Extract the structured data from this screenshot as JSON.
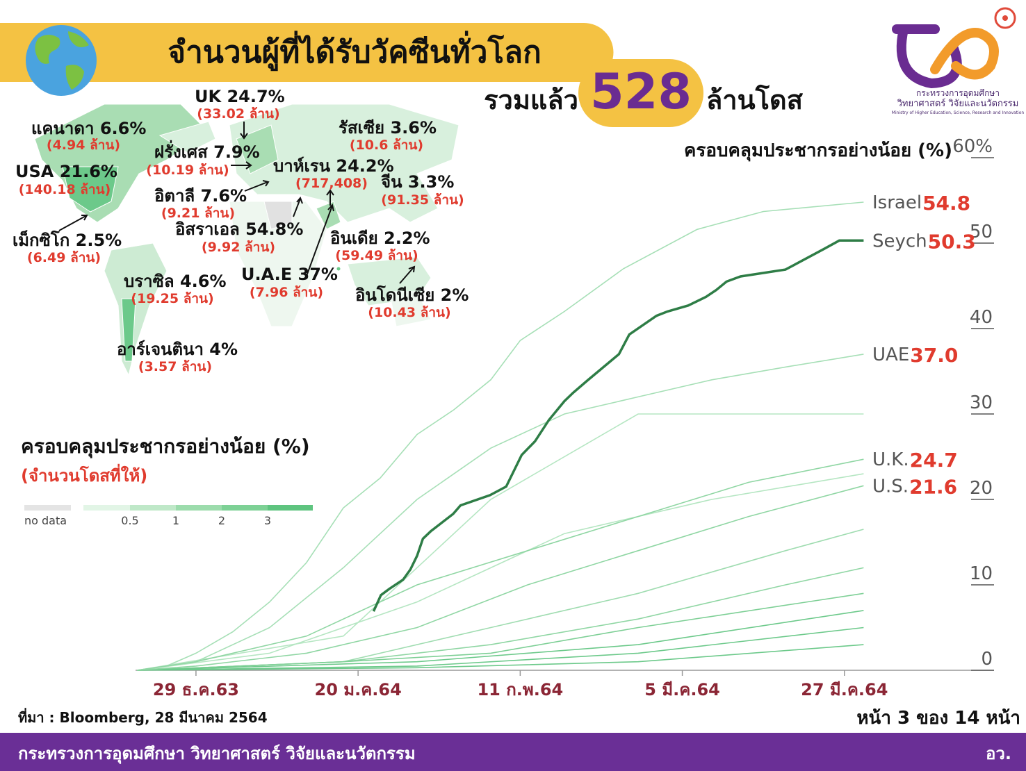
{
  "header": {
    "title": "จำนวนผู้ที่ได้รับวัคซีนทั่วโลก",
    "total_prefix": "รวมแล้ว",
    "total": "528",
    "total_suffix": "ล้านโดส"
  },
  "logo": {
    "line1": "กระทรวงการอุดมศึกษา",
    "line2": "วิทยาศาสตร์ วิจัยและนวัตกรรม",
    "line3": "Ministry of Higher Education, Science, Research and Innovation"
  },
  "map": {
    "labels": [
      {
        "label": "UK 24.7%",
        "doses": "(33.02 ล้าน)"
      },
      {
        "label": "แคนาดา 6.6%",
        "doses": "(4.94 ล้าน)"
      },
      {
        "label": "ฝรั่งเศส 7.9%",
        "doses": "(10.19 ล้าน)"
      },
      {
        "label": "รัสเซีย 3.6%",
        "doses": "(10.6 ล้าน)"
      },
      {
        "label": "USA 21.6%",
        "doses": "(140.18 ล้าน)"
      },
      {
        "label": "บาห์เรน 24.2%",
        "doses": "(717,408)"
      },
      {
        "label": "จีน 3.3%",
        "doses": "(91.35 ล้าน)"
      },
      {
        "label": "อิตาลี 7.6%",
        "doses": "(9.21 ล้าน)"
      },
      {
        "label": "อิสราเอล 54.8%",
        "doses": "(9.92 ล้าน)"
      },
      {
        "label": "เม็กซิโก 2.5%",
        "doses": "(6.49 ล้าน)"
      },
      {
        "label": "อินเดีย 2.2%",
        "doses": "(59.49 ล้าน)"
      },
      {
        "label": "บราซิล 4.6%",
        "doses": "(19.25 ล้าน)"
      },
      {
        "label": "U.A.E 37%",
        "doses": "(7.96 ล้าน)"
      },
      {
        "label": "อินโดนีเซีย 2%",
        "doses": "(10.43 ล้าน)"
      },
      {
        "label": "อาร์เจนตินา 4%",
        "doses": "(3.57 ล้าน)"
      }
    ],
    "legend_title": "ครอบคลุมประชากรอย่างน้อย (%)",
    "legend_subtitle": "(จำนวนโดสที่ให้)",
    "legend_no_data": "no data",
    "legend_ticks": [
      "0.5",
      "1",
      "2",
      "3"
    ]
  },
  "chart_data": {
    "type": "line",
    "title": "ครอบคลุมประชากรอย่างน้อย (%)",
    "xlim": [
      -8.2,
      108.3
    ],
    "xticks": [
      {
        "value": 0,
        "label": "29 ธ.ค.63"
      },
      {
        "value": 22,
        "label": "20 ม.ค.64"
      },
      {
        "value": 44,
        "label": "11 ก.พ.64"
      },
      {
        "value": 66,
        "label": "5 มี.ค.64"
      },
      {
        "value": 88,
        "label": "27 มี.ค.64"
      }
    ],
    "ylim": [
      0,
      60
    ],
    "yticks": [
      0,
      10,
      20,
      30,
      40,
      50,
      {
        "value": 60,
        "label": "60%"
      }
    ],
    "series": [
      {
        "name": "Israel",
        "label": "54.8",
        "color": "#a6dfb6",
        "x": [
          -8,
          -4,
          0,
          5,
          10,
          15,
          20,
          25,
          30,
          35,
          40,
          44,
          50,
          58,
          68,
          77,
          90.6
        ],
        "values": [
          0,
          0.5,
          2,
          4.5,
          8,
          12.6,
          19,
          22.5,
          27.6,
          30.5,
          34,
          38.6,
          42,
          47,
          51.6,
          53.7,
          54.8
        ]
      },
      {
        "name": "Seych",
        "label": "50.3",
        "color": "#2e7d46",
        "x": [
          24.1,
          25.1,
          26.2,
          28.1,
          29.1,
          30,
          30.8,
          31.9,
          34.9,
          35.9,
          39.9,
          42.1,
          44.2,
          46,
          47.9,
          50,
          51.2,
          53.1,
          57.4,
          58.8,
          62.5,
          64,
          66.8,
          69.2,
          70.6,
          72,
          73.9,
          80,
          85.2,
          87.3,
          90.6
        ],
        "values": [
          6.9,
          8.8,
          9.5,
          10.6,
          11.8,
          13.4,
          15.4,
          16.3,
          18.3,
          19.3,
          20.5,
          21.5,
          25.2,
          26.8,
          29.3,
          31.5,
          32.5,
          33.9,
          37,
          39.3,
          41.5,
          42,
          42.7,
          43.7,
          44.5,
          45.5,
          46.1,
          46.9,
          49.3,
          50.3,
          50.3
        ]
      },
      {
        "name": "UAE",
        "label": "37.0",
        "color": "#a6dfb6",
        "x": [
          -8,
          0,
          10,
          20,
          30,
          40,
          50,
          60,
          70,
          80,
          90.6
        ],
        "values": [
          0,
          1,
          5,
          12,
          20,
          26,
          30,
          32,
          34,
          35.5,
          37
        ]
      },
      {
        "name": "U.K.",
        "label": "24.7",
        "color": "#8fd6a3",
        "x": [
          -8,
          0,
          15,
          30,
          45,
          60,
          75,
          90.6
        ],
        "values": [
          0,
          1,
          4,
          10,
          14,
          18,
          22,
          24.7
        ]
      },
      {
        "name": "U.S.",
        "label": "21.6",
        "color": "#8fd6a3",
        "x": [
          -8,
          0,
          15,
          30,
          45,
          60,
          75,
          90.6
        ],
        "values": [
          0,
          0.5,
          2,
          5,
          10,
          14,
          18,
          21.6
        ]
      },
      {
        "color": "#b5e6c2",
        "x": [
          -8,
          20,
          40,
          60,
          90.6
        ],
        "values": [
          0,
          4,
          20,
          30,
          30
        ]
      },
      {
        "color": "#b5e6c2",
        "x": [
          -8,
          10,
          30,
          50,
          70,
          90.6
        ],
        "values": [
          0,
          2,
          8,
          16,
          20,
          23
        ]
      },
      {
        "color": "#9fdcb0",
        "x": [
          -8,
          20,
          40,
          60,
          80,
          90.6
        ],
        "values": [
          0,
          1,
          5,
          9,
          14,
          16.5
        ]
      },
      {
        "color": "#8fd6a3",
        "x": [
          -8,
          20,
          40,
          60,
          80,
          90.6
        ],
        "values": [
          0,
          1,
          3,
          6,
          10,
          12
        ]
      },
      {
        "color": "#7dcf95",
        "x": [
          -8,
          20,
          40,
          60,
          90.6
        ],
        "values": [
          0,
          1,
          2,
          5,
          9
        ]
      },
      {
        "color": "#6cc98a",
        "x": [
          -8,
          30,
          60,
          90.6
        ],
        "values": [
          0,
          1,
          3,
          7
        ]
      },
      {
        "color": "#6cc98a",
        "x": [
          -8,
          30,
          60,
          90.6
        ],
        "values": [
          0,
          0.5,
          2,
          5
        ]
      },
      {
        "color": "#6cc98a",
        "x": [
          -8,
          30,
          60,
          90.6
        ],
        "values": [
          0,
          0.3,
          1,
          3
        ]
      }
    ]
  },
  "footer": {
    "source": "ที่มา : Bloomberg, 28 มีนาคม 2564",
    "page": "หน้า 3 ของ 14 หน้า",
    "ministry": "กระทรวงการอุดมศึกษา วิทยาศาสตร์ วิจัยและนวัตกรรม",
    "abbr": "อว."
  }
}
